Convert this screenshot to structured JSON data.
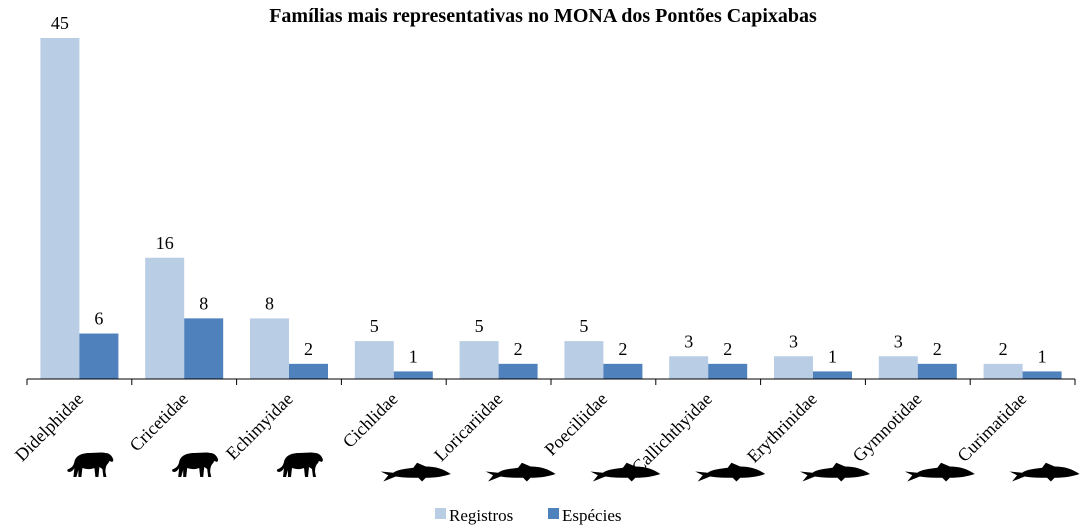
{
  "chart_data": {
    "type": "bar",
    "title": "Famílias mais representativas no MONA dos Pontões Capixabas",
    "categories": [
      "Didelphidae",
      "Cricetidae",
      "Echimyidae",
      "Cichlidae",
      "Loricariidae",
      "Poeciliidae",
      "Callichthyidae",
      "Erythrinidae",
      "Gymnotidae",
      "Curimatidae"
    ],
    "category_icons": [
      "mammal-icon",
      "mammal-icon",
      "mammal-icon",
      "fish-icon",
      "fish-icon",
      "fish-icon",
      "fish-icon",
      "fish-icon",
      "fish-icon",
      "fish-icon"
    ],
    "series": [
      {
        "name": "Registros",
        "color": "#b9cde5",
        "values": [
          45,
          16,
          8,
          5,
          5,
          5,
          3,
          3,
          3,
          2
        ]
      },
      {
        "name": "Espécies",
        "color": "#4f81bd",
        "values": [
          6,
          8,
          2,
          1,
          2,
          2,
          2,
          1,
          2,
          1
        ]
      }
    ],
    "ylim": [
      0,
      45
    ],
    "grid": false,
    "legend": "bottom",
    "data_labels": true
  }
}
